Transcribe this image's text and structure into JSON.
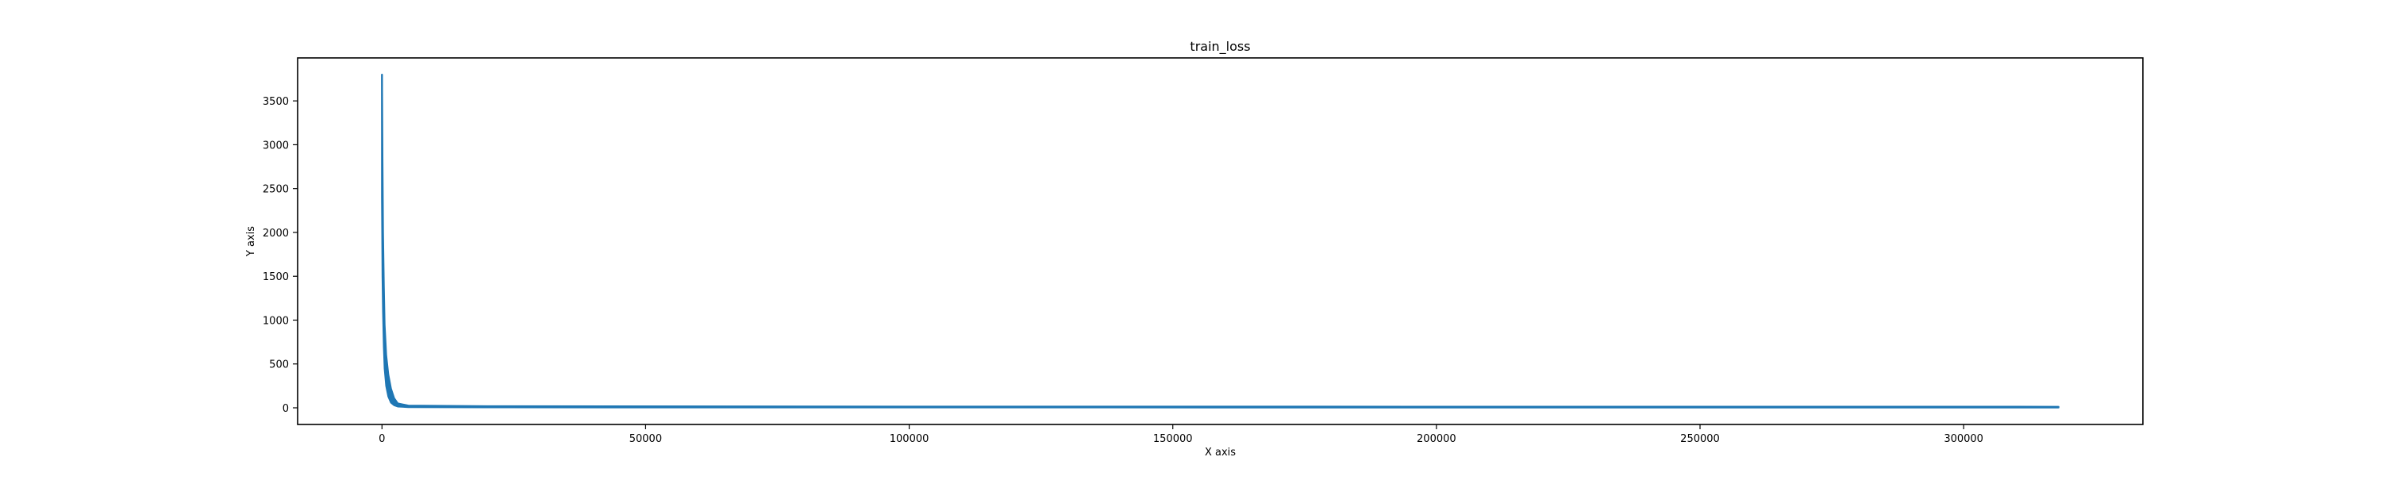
{
  "chart_data": {
    "type": "line",
    "title": "train_loss",
    "xlabel": "X axis",
    "ylabel": "Y axis",
    "xlim": [
      -16000,
      334000
    ],
    "ylim": [
      -190,
      3990
    ],
    "x_ticks": [
      0,
      50000,
      100000,
      150000,
      200000,
      250000,
      300000
    ],
    "x_tick_labels": [
      "0",
      "50000",
      "100000",
      "150000",
      "200000",
      "250000",
      "300000"
    ],
    "y_ticks": [
      0,
      500,
      1000,
      1500,
      2000,
      2500,
      3000,
      3500
    ],
    "y_tick_labels": [
      "0",
      "500",
      "1000",
      "1500",
      "2000",
      "2500",
      "3000",
      "3500"
    ],
    "grid": false,
    "legend": "none",
    "series": [
      {
        "color": "#1f77b4",
        "x": [
          0,
          20,
          50,
          100,
          150,
          200,
          300,
          400,
          500,
          700,
          900,
          1200,
          1600,
          2000,
          2500,
          3000,
          4000,
          5000,
          10000,
          50000,
          100000,
          150000,
          200000,
          250000,
          300000,
          318000
        ],
        "y": [
          3800,
          3300,
          2900,
          2200,
          1800,
          1500,
          1100,
          800,
          600,
          400,
          280,
          180,
          110,
          60,
          40,
          25,
          18,
          15,
          12,
          10,
          9,
          8,
          8,
          7,
          7,
          7
        ],
        "band": [
          {
            "x": 0,
            "low": 2400,
            "high": 3800
          },
          {
            "x": 100,
            "low": 1500,
            "high": 2800
          },
          {
            "x": 200,
            "low": 1100,
            "high": 2000
          },
          {
            "x": 350,
            "low": 700,
            "high": 1400
          },
          {
            "x": 500,
            "low": 450,
            "high": 950
          },
          {
            "x": 800,
            "low": 250,
            "high": 600
          },
          {
            "x": 1200,
            "low": 130,
            "high": 380
          },
          {
            "x": 1700,
            "low": 60,
            "high": 220
          },
          {
            "x": 2300,
            "low": 30,
            "high": 110
          },
          {
            "x": 3000,
            "low": 15,
            "high": 50
          },
          {
            "x": 5000,
            "low": 8,
            "high": 25
          },
          {
            "x": 20000,
            "low": 5,
            "high": 18
          },
          {
            "x": 100000,
            "low": 4,
            "high": 14
          },
          {
            "x": 318000,
            "low": 3,
            "high": 12
          }
        ]
      }
    ]
  }
}
